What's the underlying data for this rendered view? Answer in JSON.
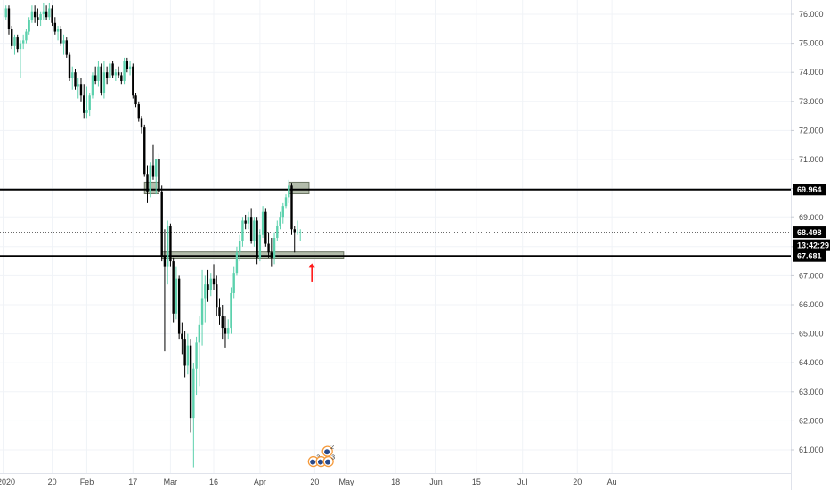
{
  "colors": {
    "up": "#5cd1ad",
    "down": "#000000",
    "grid": "#f0f3f7",
    "axis_text": "#4a4a4a",
    "zone_fill": "#9aa58f",
    "zone_stroke": "#6b7563",
    "line": "#000000",
    "arrow": "#ff1a1a",
    "tag_bg": "#000000"
  },
  "chart_data": {
    "type": "candlestick",
    "ylim": [
      60.2,
      76.5
    ],
    "y_ticks": [
      "76.000",
      "75.000",
      "74.000",
      "73.000",
      "72.000",
      "71.000",
      "70.000",
      "69.000",
      "68.000",
      "67.000",
      "66.000",
      "65.000",
      "64.000",
      "63.000",
      "62.000",
      "61.000"
    ],
    "x_ticks": [
      {
        "label": "2020",
        "day": 0
      },
      {
        "label": "20",
        "day": 17
      },
      {
        "label": "Feb",
        "day": 29
      },
      {
        "label": "17",
        "day": 45
      },
      {
        "label": "Mar",
        "day": 58
      },
      {
        "label": "16",
        "day": 73
      },
      {
        "label": "Apr",
        "day": 89
      },
      {
        "label": "20",
        "day": 108
      },
      {
        "label": "May",
        "day": 119
      },
      {
        "label": "18",
        "day": 136
      },
      {
        "label": "Jun",
        "day": 150
      },
      {
        "label": "15",
        "day": 164
      },
      {
        "label": "Jul",
        "day": 180
      },
      {
        "label": "20",
        "day": 199
      },
      {
        "label": "Au",
        "day": 211
      }
    ],
    "candles": [
      [
        1,
        75.9,
        76.3,
        75.8,
        76.2
      ],
      [
        2,
        76.2,
        76.3,
        75.3,
        75.5
      ],
      [
        3,
        75.5,
        75.6,
        74.8,
        74.9
      ],
      [
        4,
        74.9,
        75.3,
        74.6,
        75.2
      ],
      [
        5,
        75.2,
        75.3,
        74.7,
        74.8
      ],
      [
        6,
        74.8,
        75.1,
        73.8,
        75.0
      ],
      [
        7,
        75.0,
        75.3,
        74.8,
        75.1
      ],
      [
        8,
        75.1,
        75.5,
        75.0,
        75.4
      ],
      [
        9,
        75.4,
        75.9,
        75.3,
        75.8
      ],
      [
        10,
        75.8,
        76.3,
        75.7,
        76.1
      ],
      [
        11,
        76.1,
        76.3,
        75.7,
        75.9
      ],
      [
        12,
        75.9,
        76.2,
        75.6,
        75.8
      ],
      [
        13,
        75.8,
        76.1,
        75.6,
        76.0
      ],
      [
        14,
        76.0,
        76.4,
        75.8,
        76.1
      ],
      [
        15,
        76.1,
        76.3,
        75.8,
        75.9
      ],
      [
        16,
        75.9,
        76.4,
        75.8,
        76.2
      ],
      [
        17,
        76.2,
        76.3,
        75.6,
        75.7
      ],
      [
        18,
        75.7,
        75.9,
        75.3,
        75.4
      ],
      [
        19,
        75.4,
        75.6,
        75.1,
        75.5
      ],
      [
        20,
        75.5,
        75.6,
        74.9,
        75.0
      ],
      [
        21,
        75.0,
        75.3,
        74.6,
        75.1
      ],
      [
        22,
        75.1,
        75.2,
        74.5,
        74.6
      ],
      [
        23,
        74.6,
        74.7,
        73.7,
        73.8
      ],
      [
        24,
        73.8,
        74.2,
        73.4,
        74.0
      ],
      [
        25,
        74.0,
        74.1,
        73.4,
        73.5
      ],
      [
        26,
        73.5,
        73.8,
        73.1,
        73.6
      ],
      [
        27,
        73.6,
        73.8,
        73.0,
        73.2
      ],
      [
        28,
        73.2,
        73.6,
        72.4,
        72.6
      ],
      [
        29,
        72.6,
        73.5,
        72.4,
        72.7
      ],
      [
        30,
        72.7,
        73.3,
        72.5,
        73.2
      ],
      [
        31,
        73.2,
        74.0,
        73.1,
        73.9
      ],
      [
        32,
        73.9,
        74.2,
        73.6,
        73.7
      ],
      [
        33,
        73.7,
        74.4,
        73.5,
        74.2
      ],
      [
        34,
        74.2,
        74.3,
        73.2,
        73.3
      ],
      [
        35,
        73.3,
        74.4,
        73.1,
        74.0
      ],
      [
        36,
        74.0,
        74.2,
        73.6,
        73.8
      ],
      [
        37,
        73.8,
        74.4,
        73.7,
        74.3
      ],
      [
        38,
        74.3,
        74.4,
        73.8,
        73.9
      ],
      [
        39,
        73.9,
        74.1,
        73.7,
        74.0
      ],
      [
        40,
        74.0,
        74.2,
        73.8,
        73.9
      ],
      [
        41,
        73.9,
        74.0,
        73.6,
        73.7
      ],
      [
        42,
        73.7,
        74.5,
        73.6,
        74.4
      ],
      [
        43,
        74.4,
        74.5,
        74.0,
        74.1
      ],
      [
        44,
        74.1,
        74.4,
        73.9,
        74.2
      ],
      [
        45,
        74.2,
        74.3,
        73.1,
        73.2
      ],
      [
        46,
        73.2,
        73.3,
        72.8,
        72.9
      ],
      [
        47,
        72.9,
        73.0,
        72.3,
        72.4
      ],
      [
        48,
        72.4,
        72.5,
        71.9,
        72.1
      ],
      [
        49,
        72.1,
        72.2,
        70.4,
        70.5
      ],
      [
        50,
        70.5,
        70.8,
        69.5,
        69.9
      ],
      [
        51,
        69.9,
        70.9,
        69.7,
        70.8
      ],
      [
        52,
        70.8,
        71.5,
        70.3,
        70.4
      ],
      [
        53,
        70.4,
        71.0,
        69.8,
        71.0
      ],
      [
        54,
        71.0,
        71.2,
        69.8,
        69.9
      ],
      [
        55,
        69.9,
        70.1,
        67.5,
        67.7
      ],
      [
        56,
        67.7,
        68.6,
        64.4,
        67.3
      ],
      [
        57,
        67.3,
        68.9,
        66.7,
        68.7
      ],
      [
        58,
        68.7,
        68.8,
        67.3,
        67.5
      ],
      [
        59,
        67.5,
        67.6,
        65.4,
        65.7
      ],
      [
        60,
        65.7,
        67.3,
        65.5,
        66.9
      ],
      [
        61,
        66.9,
        67.0,
        64.8,
        65.0
      ],
      [
        62,
        65.0,
        65.4,
        64.3,
        64.8
      ],
      [
        63,
        64.8,
        65.1,
        63.5,
        63.9
      ],
      [
        64,
        63.9,
        65.0,
        63.6,
        64.6
      ],
      [
        65,
        64.6,
        64.8,
        61.6,
        62.1
      ],
      [
        66,
        62.1,
        64.0,
        60.4,
        63.8
      ],
      [
        67,
        63.8,
        64.9,
        62.9,
        64.7
      ],
      [
        68,
        64.7,
        65.6,
        63.2,
        65.3
      ],
      [
        69,
        65.3,
        67.2,
        64.6,
        66.2
      ],
      [
        70,
        66.2,
        67.0,
        65.4,
        66.7
      ],
      [
        71,
        66.7,
        67.2,
        66.1,
        66.5
      ],
      [
        72,
        66.5,
        67.1,
        66.3,
        66.9
      ],
      [
        73,
        66.9,
        67.4,
        66.5,
        66.7
      ],
      [
        74,
        66.7,
        67.0,
        65.6,
        65.9
      ],
      [
        75,
        65.9,
        66.2,
        65.3,
        65.6
      ],
      [
        76,
        65.6,
        66.0,
        64.8,
        65.2
      ],
      [
        77,
        65.2,
        65.6,
        64.5,
        65.0
      ],
      [
        78,
        65.0,
        65.5,
        64.8,
        65.2
      ],
      [
        79,
        65.2,
        66.6,
        65.0,
        66.4
      ],
      [
        80,
        66.4,
        67.3,
        66.2,
        67.1
      ],
      [
        81,
        67.1,
        68.0,
        67.0,
        67.8
      ],
      [
        82,
        67.8,
        68.4,
        67.5,
        68.2
      ],
      [
        83,
        68.2,
        69.0,
        68.0,
        68.9
      ],
      [
        84,
        68.9,
        69.1,
        68.6,
        68.8
      ],
      [
        85,
        68.8,
        69.2,
        68.6,
        69.0
      ],
      [
        86,
        69.0,
        69.3,
        68.1,
        68.2
      ],
      [
        87,
        68.2,
        69.0,
        68.0,
        68.9
      ],
      [
        88,
        68.9,
        69.0,
        67.4,
        67.6
      ],
      [
        89,
        67.6,
        68.6,
        67.5,
        68.4
      ],
      [
        90,
        68.4,
        69.4,
        68.3,
        69.2
      ],
      [
        91,
        69.2,
        69.3,
        68.0,
        68.1
      ],
      [
        92,
        68.1,
        68.5,
        67.6,
        67.8
      ],
      [
        93,
        67.8,
        68.3,
        67.3,
        67.6
      ],
      [
        94,
        67.6,
        68.5,
        67.4,
        68.3
      ],
      [
        95,
        68.3,
        68.9,
        68.2,
        68.7
      ],
      [
        96,
        68.7,
        69.2,
        68.6,
        69.0
      ],
      [
        97,
        69.0,
        69.5,
        68.8,
        69.4
      ],
      [
        98,
        69.4,
        69.8,
        69.3,
        69.7
      ],
      [
        99,
        69.7,
        70.3,
        69.5,
        70.1
      ],
      [
        100,
        70.1,
        70.2,
        68.4,
        68.6
      ],
      [
        101,
        68.6,
        68.7,
        67.8,
        68.5
      ],
      [
        102,
        68.5,
        68.9,
        68.4,
        68.5
      ],
      [
        103,
        68.5,
        68.6,
        68.2,
        68.5
      ]
    ],
    "horizontal_lines": [
      69.964,
      67.681
    ],
    "last_price": 68.498,
    "price_tags": [
      {
        "label": "69.964",
        "value": 69.964
      },
      {
        "label": "68.498",
        "value": 68.498
      },
      {
        "label": "13:42:29",
        "value": 68.05
      },
      {
        "label": "67.681",
        "value": 67.681
      }
    ],
    "zones": [
      {
        "day_start": 49,
        "day_end": 54,
        "y_low": 69.82,
        "y_high": 70.22
      },
      {
        "day_start": 55,
        "day_end": 118,
        "y_low": 67.58,
        "y_high": 67.82
      },
      {
        "day_start": 99,
        "day_end": 106,
        "y_low": 69.82,
        "y_high": 70.22
      }
    ],
    "arrow": {
      "day": 107,
      "y_from": 66.8,
      "y_to": 67.4
    },
    "events": [
      {
        "label": "3",
        "day": 107.5,
        "y": 60.6
      },
      {
        "label": "2",
        "day": 110.2,
        "y": 60.6
      },
      {
        "label": "3",
        "day": 112.7,
        "y": 60.6
      },
      {
        "label": "2",
        "day": 112.4,
        "y": 60.95
      }
    ]
  }
}
